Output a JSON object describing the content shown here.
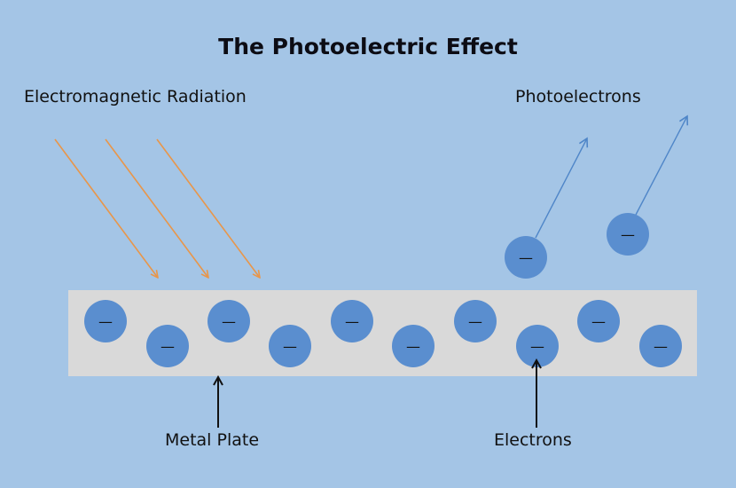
{
  "title": "The Photoelectric Effect",
  "labels": {
    "radiation": "Electromagnetic Radiation",
    "photoelectrons": "Photoelectrons",
    "metal_plate": "Metal Plate",
    "electrons": "Electrons"
  },
  "electron": {
    "charge_symbol": "—"
  },
  "colors": {
    "background": "#a4c5e6",
    "plate": "#d9d9d9",
    "electron": "#5a8ecf",
    "radiation_ray": "#e8964a",
    "photoelectron_path": "#4f86c8",
    "pointer": "#111111"
  }
}
